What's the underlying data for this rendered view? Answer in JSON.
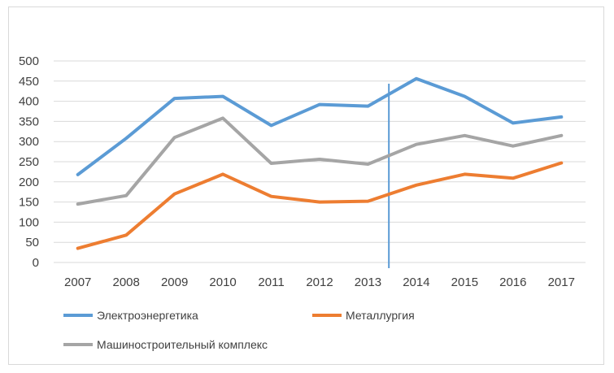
{
  "chart_data": {
    "type": "line",
    "x": [
      "2007",
      "2008",
      "2009",
      "2010",
      "2011",
      "2012",
      "2013",
      "2014",
      "2015",
      "2016",
      "2017"
    ],
    "ylim": [
      0,
      500
    ],
    "yticks": [
      "0",
      "50",
      "100",
      "150",
      "200",
      "250",
      "300",
      "350",
      "400",
      "450",
      "500"
    ],
    "grid": true,
    "legend_position": "bottom",
    "marker_line_between": [
      "2013",
      "2014"
    ],
    "series": [
      {
        "name": "Электроэнергетика",
        "color": "#5b9bd5",
        "values": [
          218,
          308,
          407,
          412,
          340,
          392,
          388,
          456,
          412,
          346,
          361
        ]
      },
      {
        "name": "Металлургия",
        "color": "#ed7d31",
        "values": [
          35,
          68,
          170,
          219,
          164,
          150,
          152,
          192,
          219,
          209,
          247
        ]
      },
      {
        "name": "Машиностроительный комплекс",
        "color": "#a5a5a5",
        "values": [
          145,
          166,
          310,
          358,
          246,
          256,
          244,
          293,
          315,
          289,
          315
        ]
      }
    ]
  }
}
